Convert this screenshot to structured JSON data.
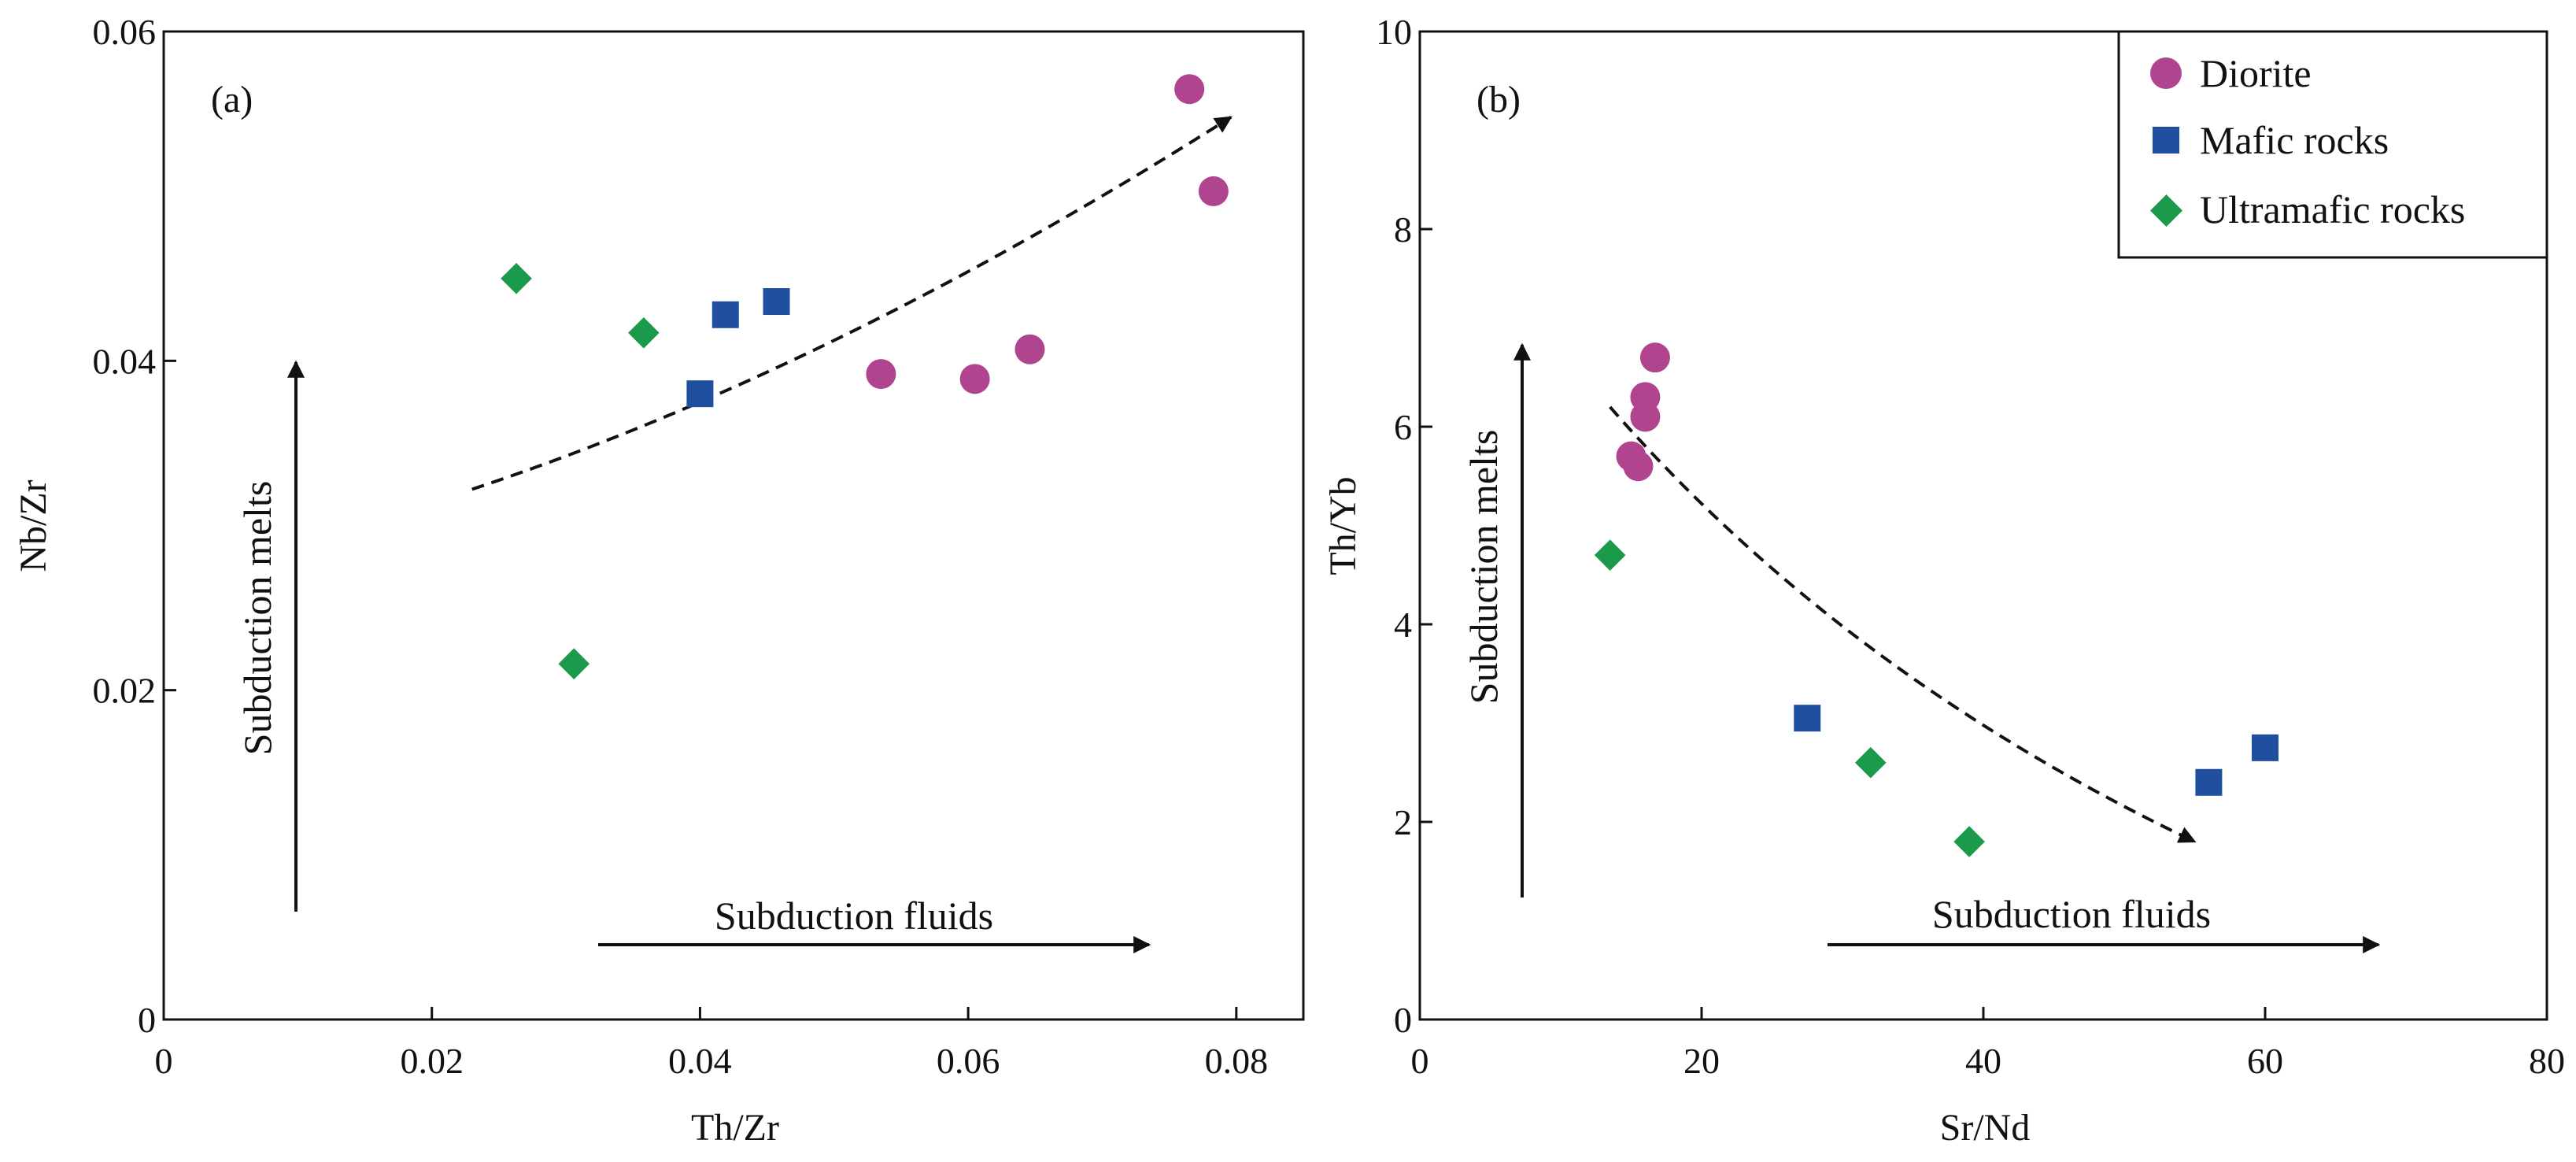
{
  "chart_data": [
    {
      "type": "scatter",
      "panel_label": "(a)",
      "xlabel": "Th/Zr",
      "ylabel": "Nb/Zr",
      "xlim": [
        0,
        0.085
      ],
      "ylim": [
        0,
        0.06
      ],
      "xticks": [
        0,
        0.02,
        0.04,
        0.06,
        0.08
      ],
      "xtick_labels": [
        "0",
        "0.02",
        "0.04",
        "0.06",
        "0.08"
      ],
      "yticks": [
        0,
        0.02,
        0.04,
        0.06
      ],
      "ytick_labels": [
        "0",
        "0.02",
        "0.04",
        "0.06"
      ],
      "series": [
        {
          "name": "Diorite",
          "marker": "circle",
          "color": "#B0448F",
          "points": [
            [
              0.0765,
              0.0565
            ],
            [
              0.0783,
              0.0503
            ],
            [
              0.0535,
              0.0392
            ],
            [
              0.0605,
              0.0389
            ],
            [
              0.0646,
              0.0407
            ]
          ]
        },
        {
          "name": "Mafic rocks",
          "marker": "square",
          "color": "#1F4F9E",
          "points": [
            [
              0.0419,
              0.0428
            ],
            [
              0.0457,
              0.0436
            ],
            [
              0.04,
              0.038
            ]
          ]
        },
        {
          "name": "Ultramafic rocks",
          "marker": "diamond",
          "color": "#1A9A4A",
          "points": [
            [
              0.0263,
              0.045
            ],
            [
              0.0358,
              0.0417
            ],
            [
              0.0306,
              0.0216
            ]
          ]
        }
      ],
      "trend_curve": [
        [
          0.023,
          0.0322
        ],
        [
          0.05,
          0.0395
        ],
        [
          0.0796,
          0.0548
        ]
      ],
      "annotations": {
        "vertical_arrow": "Subduction melts",
        "horizontal_arrow": "Subduction fluids"
      },
      "grid": false,
      "legend": "none"
    },
    {
      "type": "scatter",
      "panel_label": "(b)",
      "xlabel": "Sr/Nd",
      "ylabel": "Th/Yb",
      "xlim": [
        0,
        80
      ],
      "ylim": [
        0,
        10
      ],
      "xticks": [
        0,
        20,
        40,
        60,
        80
      ],
      "xtick_labels": [
        "0",
        "20",
        "40",
        "60",
        "80"
      ],
      "yticks": [
        0,
        2,
        4,
        6,
        8,
        10
      ],
      "ytick_labels": [
        "0",
        "2",
        "4",
        "6",
        "8",
        "10"
      ],
      "series": [
        {
          "name": "Diorite",
          "marker": "circle",
          "color": "#B0448F",
          "points": [
            [
              16.7,
              6.7
            ],
            [
              16.0,
              6.3
            ],
            [
              16.0,
              6.1
            ],
            [
              15.0,
              5.7
            ],
            [
              15.5,
              5.6
            ]
          ]
        },
        {
          "name": "Mafic rocks",
          "marker": "square",
          "color": "#1F4F9E",
          "points": [
            [
              27.5,
              3.05
            ],
            [
              56.0,
              2.4
            ],
            [
              60.0,
              2.75
            ]
          ]
        },
        {
          "name": "Ultramafic rocks",
          "marker": "diamond",
          "color": "#1A9A4A",
          "points": [
            [
              13.5,
              4.7
            ],
            [
              32.0,
              2.6
            ],
            [
              39.0,
              1.8
            ]
          ]
        }
      ],
      "trend_curve": [
        [
          13.5,
          6.2
        ],
        [
          30.0,
          3.5
        ],
        [
          55.0,
          1.8
        ]
      ],
      "annotations": {
        "vertical_arrow": "Subduction melts",
        "horizontal_arrow": "Subduction fluids"
      },
      "grid": false,
      "legend": "top-right"
    }
  ],
  "legend": {
    "items": [
      {
        "label": "Diorite",
        "marker": "circle",
        "color": "#B0448F"
      },
      {
        "label": "Mafic rocks",
        "marker": "square",
        "color": "#1F4F9E"
      },
      {
        "label": "Ultramafic rocks",
        "marker": "diamond",
        "color": "#1A9A4A"
      }
    ]
  }
}
